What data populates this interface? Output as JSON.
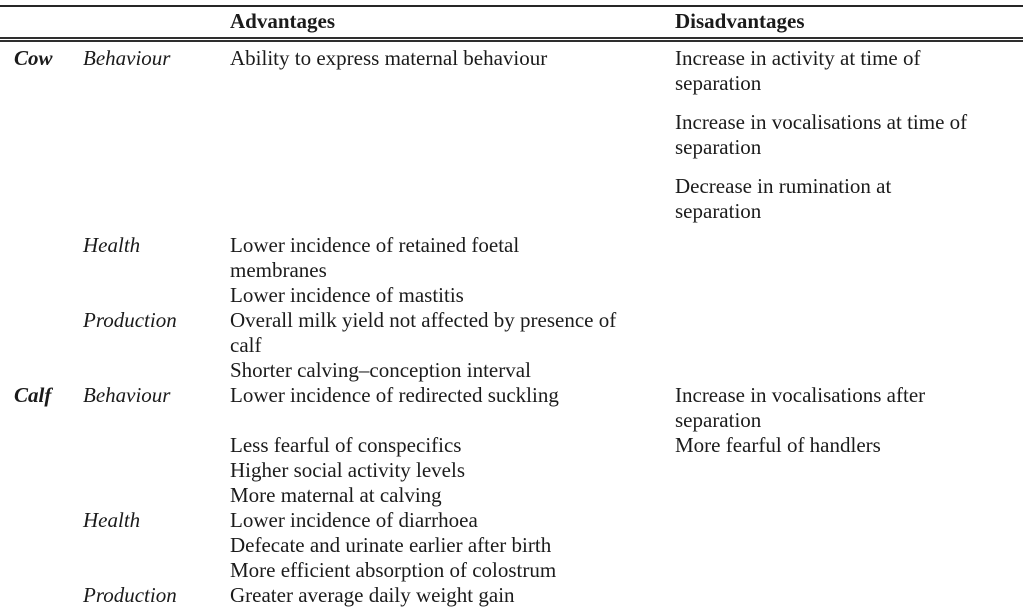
{
  "table": {
    "header": {
      "advantages": "Advantages",
      "disadvantages": "Disadvantages"
    },
    "rows": [
      {
        "group": "Cow",
        "category": "Behaviour",
        "advantage": "Ability to express maternal behaviour",
        "disadvantage": "Increase in activity at time of\nseparation"
      },
      {
        "group": "",
        "category": "",
        "advantage": "",
        "disadvantage": "Increase in vocalisations at time of\nseparation"
      },
      {
        "group": "",
        "category": "",
        "advantage": "",
        "disadvantage": "Decrease in rumination at\nseparation"
      },
      {
        "group": "",
        "category": "Health",
        "advantage": "Lower incidence of retained foetal\nmembranes",
        "disadvantage": ""
      },
      {
        "group": "",
        "category": "",
        "advantage": "Lower incidence of mastitis",
        "disadvantage": ""
      },
      {
        "group": "",
        "category": "Production",
        "advantage": "Overall milk yield not affected by presence of\ncalf",
        "disadvantage": ""
      },
      {
        "group": "",
        "category": "",
        "advantage": "Shorter calving–conception interval",
        "disadvantage": ""
      },
      {
        "group": "Calf",
        "category": "Behaviour",
        "advantage": "Lower incidence of redirected suckling",
        "disadvantage": "Increase in vocalisations after\nseparation"
      },
      {
        "group": "",
        "category": "",
        "advantage": "Less fearful of conspecifics",
        "disadvantage": "More fearful of handlers"
      },
      {
        "group": "",
        "category": "",
        "advantage": "Higher social activity levels",
        "disadvantage": ""
      },
      {
        "group": "",
        "category": "",
        "advantage": "More maternal at calving",
        "disadvantage": ""
      },
      {
        "group": "",
        "category": "Health",
        "advantage": "Lower incidence of diarrhoea",
        "disadvantage": ""
      },
      {
        "group": "",
        "category": "",
        "advantage": "Defecate and urinate earlier after birth",
        "disadvantage": ""
      },
      {
        "group": "",
        "category": "",
        "advantage": "More efficient absorption of colostrum",
        "disadvantage": ""
      },
      {
        "group": "",
        "category": "Production",
        "advantage": "Greater average daily weight gain",
        "disadvantage": ""
      }
    ]
  }
}
